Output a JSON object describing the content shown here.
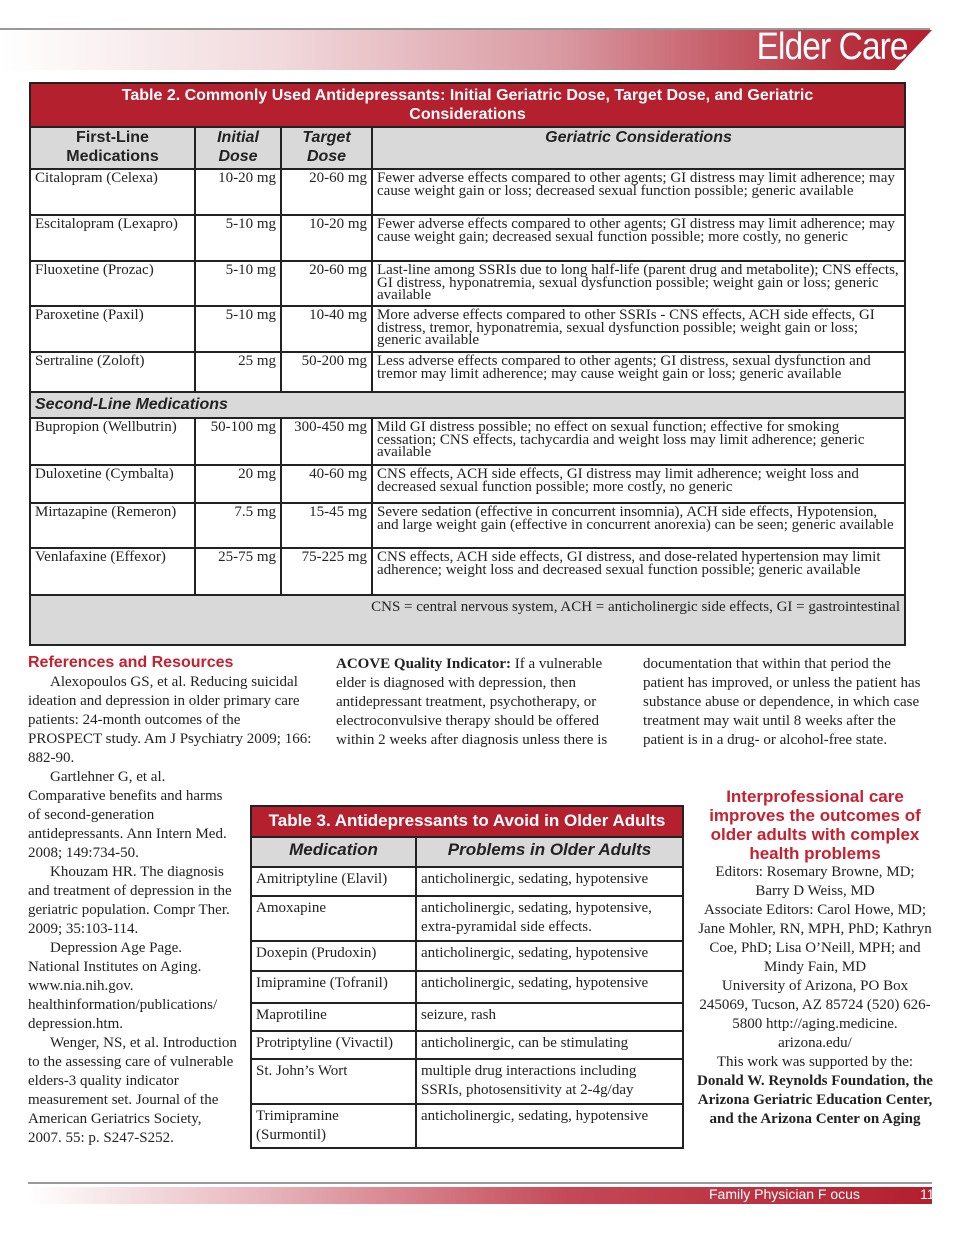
{
  "header": {
    "section_title": "Elder Care"
  },
  "table2": {
    "caption": "Table 2. Commonly Used Antidepressants: Initial Geriatric Dose, Target Dose, and Geriatric Considerations",
    "columns": [
      "First-Line Medications",
      "Initial Dose",
      "Target Dose",
      "Geriatric Considerations"
    ],
    "first_line": [
      {
        "med": "Citalopram (Celexa)",
        "initial": "10-20 mg",
        "target": "20-60 mg",
        "notes": "Fewer adverse effects compared to other agents; GI distress may limit adherence; may cause weight gain or loss; decreased sexual function possible; generic available"
      },
      {
        "med": "Escitalopram (Lexapro)",
        "initial": "5-10 mg",
        "target": "10-20 mg",
        "notes": "Fewer adverse effects compared to other agents; GI distress may limit adherence; may cause weight gain; decreased sexual function possible; more costly, no generic"
      },
      {
        "med": "Fluoxetine (Prozac)",
        "initial": "5-10 mg",
        "target": "20-60 mg",
        "notes": "Last-line among SSRIs due to long half-life (parent drug and metabolite); CNS effects, GI distress, hyponatremia, sexual dysfunction possible; weight gain or loss; generic available"
      },
      {
        "med": "Paroxetine (Paxil)",
        "initial": "5-10 mg",
        "target": "10-40 mg",
        "notes": "More adverse effects compared to other SSRIs - CNS effects, ACH side effects, GI distress, tremor, hyponatremia, sexual dysfunction possible; weight gain or loss; generic available"
      },
      {
        "med": "Sertraline (Zoloft)",
        "initial": "25 mg",
        "target": "50-200 mg",
        "notes": "Less adverse effects compared to other agents; GI distress, sexual dysfunction and tremor may limit adherence; may cause weight gain or loss; generic available"
      }
    ],
    "second_line_label": "Second-Line Medications",
    "second_line": [
      {
        "med": "Bupropion (Wellbutrin)",
        "initial": "50-100 mg",
        "target": "300-450 mg",
        "notes": "Mild GI distress possible; no effect on sexual function; effective for smoking cessation; CNS effects, tachycardia and weight loss may limit adherence; generic available"
      },
      {
        "med": "Duloxetine (Cymbalta)",
        "initial": "20 mg",
        "target": "40-60 mg",
        "notes": "CNS effects, ACH side effects, GI distress may limit adherence; weight loss and decreased sexual function possible; more costly, no generic"
      },
      {
        "med": "Mirtazapine (Remeron)",
        "initial": "7.5 mg",
        "target": "15-45 mg",
        "notes": "Severe sedation (effective in concurrent insomnia), ACH side effects, Hypotension, and large weight gain (effective in concurrent anorexia) can be seen; generic available"
      },
      {
        "med": "Venlafaxine (Effexor)",
        "initial": "25-75 mg",
        "target": "75-225 mg",
        "notes": "CNS effects, ACH side effects, GI distress, and dose-related hypertension may limit adherence; weight loss and decreased sexual function possible; generic available"
      }
    ],
    "footnote": "CNS = central nervous system, ACH = anticholinergic side effects, GI = gastrointestinal"
  },
  "references": {
    "heading": "References and Resources",
    "items": [
      "Alexopoulos GS, et al.  Reducing suicidal ideation and depression in older primary care patients: 24-month outcomes of the PROSPECT study. Am J Psychiatry 2009; 166: 882-90.",
      "Gartlehner G, et al. Comparative benefits and harms of second-generation antidepressants.  Ann Intern Med. 2008; 149:734-50.",
      "Khouzam HR.  The diagnosis and treatment of depression in the geriatric population.  Compr Ther. 2009; 35:103-114.",
      "Depression Age Page. National Institutes on Aging.  www.nia.nih.gov. healthinformation/publications/ depression.htm.",
      "Wenger, NS, et al. Introduction to the assessing care of vulnerable elders-3 quality indicator measurement set. Journal of the American  Geriatrics Society, 2007. 55: p. S247-S252."
    ]
  },
  "acove": {
    "label": "ACOVE Quality Indicator:",
    "text": " If a vulnerable elder is diagnosed with depression, then antidepressant treatment, psychotherapy, or electroconvulsive therapy should be offered within 2 weeks after diagnosis unless there is",
    "continued": "documentation that within that period the patient has improved, or unless the patient has substance abuse or dependence, in which case treatment may wait until 8 weeks after the patient is in a drug- or alcohol-free state."
  },
  "table3": {
    "caption": "Table 3. Antidepressants to Avoid in Older Adults",
    "columns": [
      "Medication",
      "Problems in Older Adults"
    ],
    "rows": [
      {
        "med": "Amitriptyline (Elavil)",
        "problems": "anticholinergic, sedating, hypotensive"
      },
      {
        "med": "Amoxapine",
        "problems": "anticholinergic, sedating, hypotensive, extra-pyramidal side effects."
      },
      {
        "med": "Doxepin (Prudoxin)",
        "problems": "anticholinergic, sedating, hypotensive"
      },
      {
        "med": "Imipramine (Tofranil)",
        "problems": "anticholinergic, sedating, hypotensive"
      },
      {
        "med": "Maprotiline",
        "problems": "seizure, rash"
      },
      {
        "med": "Protriptyline (Vivactil)",
        "problems": "anticholinergic, can be stimulating"
      },
      {
        "med": "St. John’s Wort",
        "problems": "multiple drug interactions including SSRIs, photosensitivity at 2-4g/day"
      },
      {
        "med": "Trimipramine (Surmontil)",
        "problems": "anticholinergic, sedating, hypotensive"
      }
    ]
  },
  "sidebar": {
    "heading": "Interprofessional care improves the outcomes of older adults with complex health problems",
    "editors": "Editors:  Rosemary Browne, MD; Barry D Weiss, MD",
    "associate": "Associate Editors: Carol Howe, MD; Jane Mohler, RN, MPH, PhD; Kathryn Coe, PhD; Lisa O’Neill, MPH; and Mindy Fain, MD",
    "address": "University of Arizona, PO Box 245069, Tucson, AZ 85724  (520) 626-5800  http://aging.medicine. arizona.edu/",
    "support_intro": "This work was supported by the:",
    "supporters": "Donald W. Reynolds Foundation, the Arizona Geriatric Education Center, and the Arizona Center on Aging"
  },
  "footer": {
    "publication": "Family Physician F ocus",
    "page": "11"
  },
  "colors": {
    "accent": "#b5202e",
    "header_gray": "#d9d9d9"
  }
}
